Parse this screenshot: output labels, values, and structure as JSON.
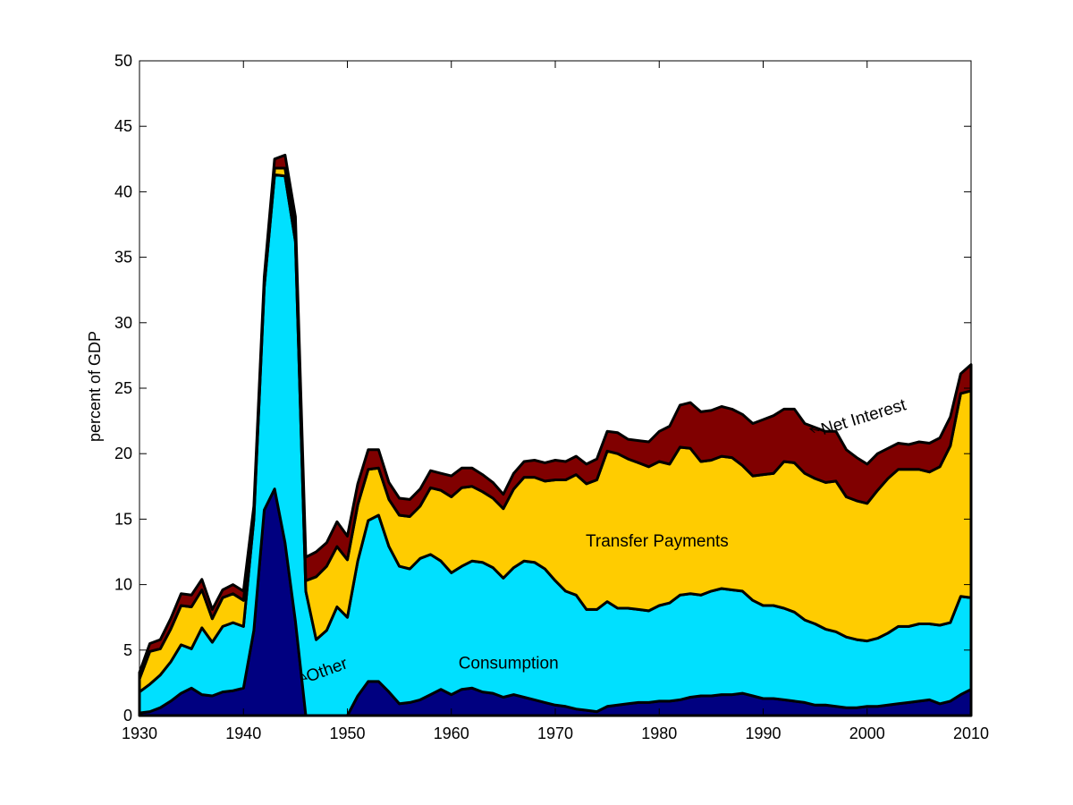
{
  "chart_data": {
    "type": "area",
    "stacked": true,
    "title": "",
    "xlabel": "",
    "ylabel": "percent of GDP",
    "xlim": [
      1930,
      2010
    ],
    "ylim": [
      0,
      50
    ],
    "xticks": [
      1930,
      1940,
      1950,
      1960,
      1970,
      1980,
      1990,
      2000,
      2010
    ],
    "yticks": [
      0,
      5,
      10,
      15,
      20,
      25,
      30,
      35,
      40,
      45,
      50
    ],
    "grid": false,
    "x": [
      1930,
      1931,
      1932,
      1933,
      1934,
      1935,
      1936,
      1937,
      1938,
      1939,
      1940,
      1941,
      1942,
      1943,
      1944,
      1945,
      1946,
      1947,
      1948,
      1949,
      1950,
      1951,
      1952,
      1953,
      1954,
      1955,
      1956,
      1957,
      1958,
      1959,
      1960,
      1961,
      1962,
      1963,
      1964,
      1965,
      1966,
      1967,
      1968,
      1969,
      1970,
      1971,
      1972,
      1973,
      1974,
      1975,
      1976,
      1977,
      1978,
      1979,
      1980,
      1981,
      1982,
      1983,
      1984,
      1985,
      1986,
      1987,
      1988,
      1989,
      1990,
      1991,
      1992,
      1993,
      1994,
      1995,
      1996,
      1997,
      1998,
      1999,
      2000,
      2001,
      2002,
      2003,
      2004,
      2005,
      2006,
      2007,
      2008,
      2009,
      2010
    ],
    "series": [
      {
        "color": "#000080",
        "values": [
          0.2,
          0.3,
          0.6,
          1.1,
          1.7,
          2.1,
          1.6,
          1.5,
          1.8,
          1.9,
          2.1,
          6.5,
          15.7,
          17.3,
          13.2,
          7.2,
          0,
          0,
          0,
          0,
          0,
          1.5,
          2.6,
          2.6,
          1.8,
          0.9,
          1.0,
          1.2,
          1.6,
          2.0,
          1.6,
          2.0,
          2.1,
          1.8,
          1.7,
          1.4,
          1.6,
          1.4,
          1.2,
          1.0,
          0.8,
          0.7,
          0.5,
          0.4,
          0.3,
          0.7,
          0.8,
          0.9,
          1.0,
          1.0,
          1.1,
          1.1,
          1.2,
          1.4,
          1.5,
          1.5,
          1.6,
          1.6,
          1.7,
          1.5,
          1.3,
          1.3,
          1.2,
          1.1,
          1.0,
          0.8,
          0.8,
          0.7,
          0.6,
          0.6,
          0.7,
          0.7,
          0.8,
          0.9,
          1.0,
          1.1,
          1.2,
          0.9,
          1.1,
          1.6,
          2.0
        ]
      },
      {
        "color": "#00E0FF",
        "values": [
          1.6,
          2.1,
          2.5,
          3.0,
          3.7,
          3.0,
          5.1,
          4.1,
          5.0,
          5.2,
          4.7,
          8.5,
          17.0,
          24.0,
          28.0,
          29.0,
          9.5,
          5.8,
          6.5,
          8.3,
          7.5,
          10.3,
          12.3,
          12.7,
          11.1,
          10.5,
          10.2,
          10.8,
          10.7,
          9.8,
          9.3,
          9.4,
          9.7,
          9.9,
          9.6,
          9.1,
          9.7,
          10.4,
          10.5,
          10.2,
          9.5,
          8.8,
          8.7,
          7.7,
          7.8,
          8.0,
          7.4,
          7.3,
          7.1,
          7.0,
          7.3,
          7.5,
          8.0,
          7.9,
          7.7,
          8.0,
          8.1,
          8.0,
          7.8,
          7.3,
          7.1,
          7.1,
          7.0,
          6.8,
          6.3,
          6.2,
          5.8,
          5.7,
          5.4,
          5.2,
          5.0,
          5.2,
          5.5,
          5.9,
          5.8,
          5.9,
          5.8,
          6.0,
          6.0,
          7.5,
          7.0
        ]
      },
      {
        "color": "#FFCC00",
        "values": [
          1.0,
          2.5,
          2.0,
          2.5,
          3.0,
          3.2,
          2.9,
          1.8,
          2.2,
          2.2,
          2.0,
          0.5,
          0.3,
          0.5,
          0.6,
          0.6,
          0.8,
          4.8,
          4.9,
          4.6,
          4.4,
          4.3,
          3.9,
          3.6,
          3.6,
          3.9,
          4.0,
          4.0,
          5.1,
          5.4,
          5.8,
          6.0,
          5.7,
          5.4,
          5.3,
          5.3,
          6.0,
          6.4,
          6.5,
          6.7,
          7.7,
          8.5,
          9.2,
          9.6,
          9.9,
          11.5,
          11.8,
          11.4,
          11.2,
          11.0,
          11.0,
          10.6,
          11.3,
          11.1,
          10.2,
          10.0,
          10.1,
          10.1,
          9.6,
          9.5,
          10.0,
          10.1,
          11.2,
          11.4,
          11.2,
          11.1,
          11.2,
          11.5,
          10.7,
          10.6,
          10.5,
          11.3,
          11.8,
          12.0,
          12.0,
          11.8,
          11.6,
          12.1,
          13.5,
          15.5,
          15.8
        ]
      },
      {
        "color": "#800000",
        "values": [
          0.5,
          0.6,
          0.7,
          0.8,
          0.9,
          0.9,
          0.8,
          0.7,
          0.6,
          0.7,
          0.7,
          0.5,
          0.5,
          0.7,
          1.0,
          1.3,
          1.8,
          1.9,
          1.8,
          1.9,
          1.8,
          1.6,
          1.5,
          1.4,
          1.3,
          1.3,
          1.3,
          1.3,
          1.3,
          1.3,
          1.6,
          1.5,
          1.4,
          1.3,
          1.2,
          1.1,
          1.2,
          1.2,
          1.3,
          1.4,
          1.5,
          1.4,
          1.4,
          1.5,
          1.6,
          1.5,
          1.6,
          1.5,
          1.7,
          1.9,
          2.3,
          2.9,
          3.2,
          3.5,
          3.8,
          3.8,
          3.8,
          3.7,
          3.9,
          4.0,
          4.2,
          4.4,
          4.0,
          4.1,
          3.8,
          3.9,
          3.9,
          3.8,
          3.6,
          3.3,
          3.0,
          2.8,
          2.3,
          2.0,
          1.9,
          2.1,
          2.2,
          2.2,
          2.2,
          1.5,
          2.0
        ]
      }
    ],
    "annotations": [
      {
        "text": "Net Interest",
        "x": 1999.8,
        "y": 22.4,
        "rotate": -17,
        "arrow_to": [
          1994.5,
          21.9
        ]
      },
      {
        "text": "Transfer Payments",
        "x": 1979.8,
        "y": 12.9,
        "rotate": 0
      },
      {
        "text": "Other",
        "x": 1948.2,
        "y": 3.1,
        "rotate": -20,
        "arrow_to": [
          1946.1,
          2.8
        ]
      },
      {
        "text": "Consumption",
        "x": 1965.5,
        "y": 3.6,
        "rotate": 0
      }
    ]
  }
}
